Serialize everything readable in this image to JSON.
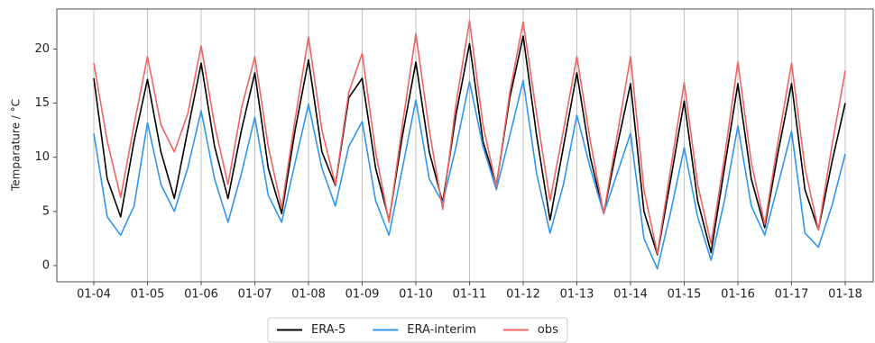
{
  "chart_data": {
    "type": "line",
    "ylabel": "Temparature / °C",
    "categories": [
      "01-04",
      null,
      null,
      null,
      "01-05",
      null,
      null,
      null,
      "01-06",
      null,
      null,
      null,
      "01-07",
      null,
      null,
      null,
      "01-08",
      null,
      null,
      null,
      "01-09",
      null,
      null,
      null,
      "01-10",
      null,
      null,
      null,
      "01-11",
      null,
      null,
      null,
      "01-12",
      null,
      null,
      null,
      "01-13",
      null,
      null,
      null,
      "01-14",
      null,
      null,
      null,
      "01-15",
      null,
      null,
      null,
      "01-16",
      null,
      null,
      null,
      "01-17",
      null,
      null,
      null,
      "01-18"
    ],
    "series": [
      {
        "name": "ERA-5",
        "color": "#000000",
        "values": [
          17.3,
          8.0,
          4.5,
          11.5,
          17.2,
          10.5,
          6.2,
          12.5,
          18.7,
          11.0,
          6.2,
          12.5,
          17.8,
          9.0,
          4.8,
          12.5,
          19.0,
          10.5,
          7.4,
          15.5,
          17.3,
          9.0,
          4.2,
          12.0,
          18.8,
          10.5,
          5.8,
          14.0,
          20.5,
          11.5,
          7.4,
          15.5,
          21.2,
          12.0,
          4.2,
          11.0,
          17.8,
          10.0,
          4.8,
          11.0,
          16.8,
          5.0,
          1.0,
          8.0,
          15.2,
          6.0,
          1.2,
          9.0,
          16.8,
          8.0,
          3.5,
          10.5,
          16.8,
          7.0,
          3.3,
          9.5,
          15.0
        ]
      },
      {
        "name": "ERA-interim",
        "color": "#2f96f0",
        "values": [
          12.2,
          4.5,
          2.8,
          5.5,
          13.2,
          7.5,
          5.0,
          9.0,
          14.3,
          8.0,
          4.0,
          8.5,
          13.7,
          6.5,
          4.0,
          9.5,
          14.9,
          9.0,
          5.5,
          11.0,
          13.3,
          6.0,
          2.8,
          9.0,
          15.3,
          8.0,
          5.8,
          11.0,
          17.0,
          11.0,
          7.0,
          12.0,
          17.1,
          8.5,
          3.0,
          7.5,
          13.9,
          9.0,
          4.8,
          8.5,
          12.2,
          2.5,
          -0.3,
          5.0,
          10.9,
          4.5,
          0.5,
          6.0,
          12.9,
          5.5,
          2.8,
          7.5,
          12.4,
          3.0,
          1.7,
          5.5,
          10.3
        ]
      },
      {
        "name": "obs",
        "color": "#f06464",
        "values": [
          18.7,
          11.5,
          6.3,
          13.0,
          19.3,
          13.0,
          10.5,
          14.0,
          20.3,
          13.0,
          7.5,
          14.5,
          19.3,
          11.0,
          5.3,
          13.5,
          21.1,
          12.5,
          7.5,
          16.0,
          19.6,
          10.5,
          4.0,
          13.0,
          21.4,
          12.5,
          5.2,
          15.0,
          22.6,
          13.0,
          7.3,
          16.0,
          22.5,
          14.0,
          6.0,
          12.5,
          19.3,
          11.5,
          4.8,
          12.0,
          19.3,
          7.0,
          1.1,
          9.0,
          16.9,
          7.5,
          2.0,
          10.0,
          18.8,
          9.5,
          3.8,
          11.5,
          18.7,
          9.0,
          3.3,
          11.0,
          18.0
        ]
      }
    ],
    "ylim": [
      -1.5,
      23.7
    ],
    "yticks": [
      0,
      5,
      10,
      15,
      20
    ],
    "grid": "x",
    "legend": "bottom"
  }
}
